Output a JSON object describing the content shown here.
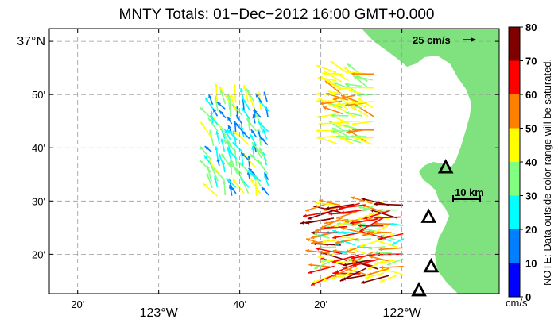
{
  "title": "MNTY Totals: 01−Dec−2012 16:00 GMT+0.000",
  "axes": {
    "x_ticks": [
      {
        "lon": -123.3333,
        "label": "20'",
        "major": false
      },
      {
        "lon": -123.0,
        "label": "123°W",
        "major": true
      },
      {
        "lon": -122.6667,
        "label": "40'",
        "major": false
      },
      {
        "lon": -122.3333,
        "label": "20'",
        "major": false
      },
      {
        "lon": -122.0,
        "label": "122°W",
        "major": true
      }
    ],
    "y_ticks": [
      {
        "lat": 37.0,
        "label": "37°N",
        "major": true
      },
      {
        "lat": 36.8333,
        "label": "50'",
        "major": false
      },
      {
        "lat": 36.6667,
        "label": "40'",
        "major": false
      },
      {
        "lat": 36.5,
        "label": "30'",
        "major": false
      },
      {
        "lat": 36.3333,
        "label": "20'",
        "major": false
      }
    ],
    "lon_range": [
      -123.45,
      -121.6
    ],
    "lat_range": [
      36.21,
      37.04
    ]
  },
  "colorbar": {
    "ticks": [
      "0",
      "10",
      "20",
      "30",
      "40",
      "50",
      "60",
      "70",
      "80"
    ],
    "unit": "cm/s",
    "note": "NOTE: Data outside color range will be saturated.",
    "colors": [
      "#0000ff",
      "#0080ff",
      "#00ffff",
      "#80ff80",
      "#ffff00",
      "#ff8000",
      "#ff0000",
      "#800000"
    ]
  },
  "legend": {
    "ref_vector": "25 cm/s",
    "scale_bar": "10 km"
  },
  "land_color": "#80e27e",
  "stations": [
    {
      "lon": -121.82,
      "lat": 36.605
    },
    {
      "lon": -121.89,
      "lat": 36.45
    },
    {
      "lon": -121.88,
      "lat": 36.295
    },
    {
      "lon": -121.93,
      "lat": 36.22
    }
  ],
  "vector_fields": [
    {
      "region": "offshore",
      "lon_min": -122.78,
      "lon_max": -122.55,
      "lat_min": 36.52,
      "lat_max": 36.82,
      "dir_deg": 155,
      "speed_min": 10,
      "speed_max": 45
    },
    {
      "region": "bay",
      "lon_min": -122.27,
      "lon_max": -122.1,
      "lat_min": 36.68,
      "lat_max": 36.9,
      "dir_deg": 105,
      "speed_min": 35,
      "speed_max": 55
    },
    {
      "region": "south",
      "lon_min": -122.3,
      "lon_max": -121.98,
      "lat_min": 36.27,
      "lat_max": 36.5,
      "dir_deg": 85,
      "speed_min": 25,
      "speed_max": 75
    }
  ]
}
